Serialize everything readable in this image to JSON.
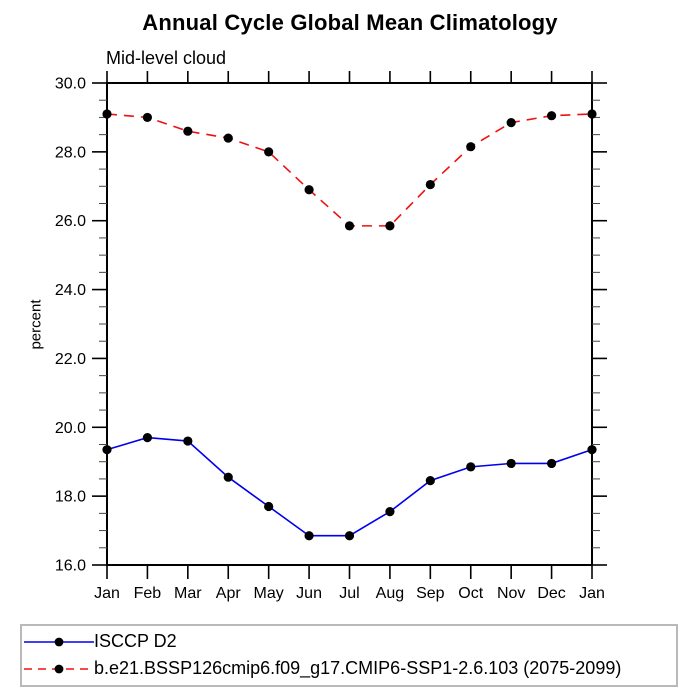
{
  "title": "Annual Cycle Global Mean Climatology",
  "subtitle": "Mid-level cloud",
  "chart_data": {
    "type": "line",
    "x_categories": [
      "Jan",
      "Feb",
      "Mar",
      "Apr",
      "May",
      "Jun",
      "Jul",
      "Aug",
      "Sep",
      "Oct",
      "Nov",
      "Dec",
      "Jan"
    ],
    "ylabel": "percent",
    "ylim": [
      16.0,
      30.0
    ],
    "yticks": [
      {
        "value": 30.0,
        "label": "30.0"
      },
      {
        "value": 28.0,
        "label": "28.0"
      },
      {
        "value": 26.0,
        "label": "26.0"
      },
      {
        "value": 24.0,
        "label": "24.0"
      },
      {
        "value": 22.0,
        "label": "22.0"
      },
      {
        "value": 20.0,
        "label": "20.0"
      },
      {
        "value": 18.0,
        "label": "18.0"
      },
      {
        "value": 16.0,
        "label": "16.0"
      }
    ],
    "ytick_minor_step": 0.5,
    "grid": false,
    "legend_position": "bottom-left-box",
    "marker": "filled-circle",
    "marker_color": "#000000",
    "series": [
      {
        "name": "ISCCP D2",
        "color": "#0000ee",
        "dash": "solid",
        "values": [
          19.35,
          19.7,
          19.6,
          18.55,
          17.7,
          16.85,
          16.85,
          17.55,
          18.45,
          18.85,
          18.95,
          18.95,
          19.35
        ]
      },
      {
        "name": "b.e21.BSSP126cmip6.f09_g17.CMIP6-SSP1-2.6.103 (2075-2099)",
        "color": "#ee1111",
        "dash": "dashed",
        "values": [
          29.1,
          29.0,
          28.6,
          28.4,
          28.0,
          26.9,
          25.85,
          25.85,
          27.05,
          28.15,
          28.85,
          29.05,
          29.1
        ]
      }
    ]
  }
}
